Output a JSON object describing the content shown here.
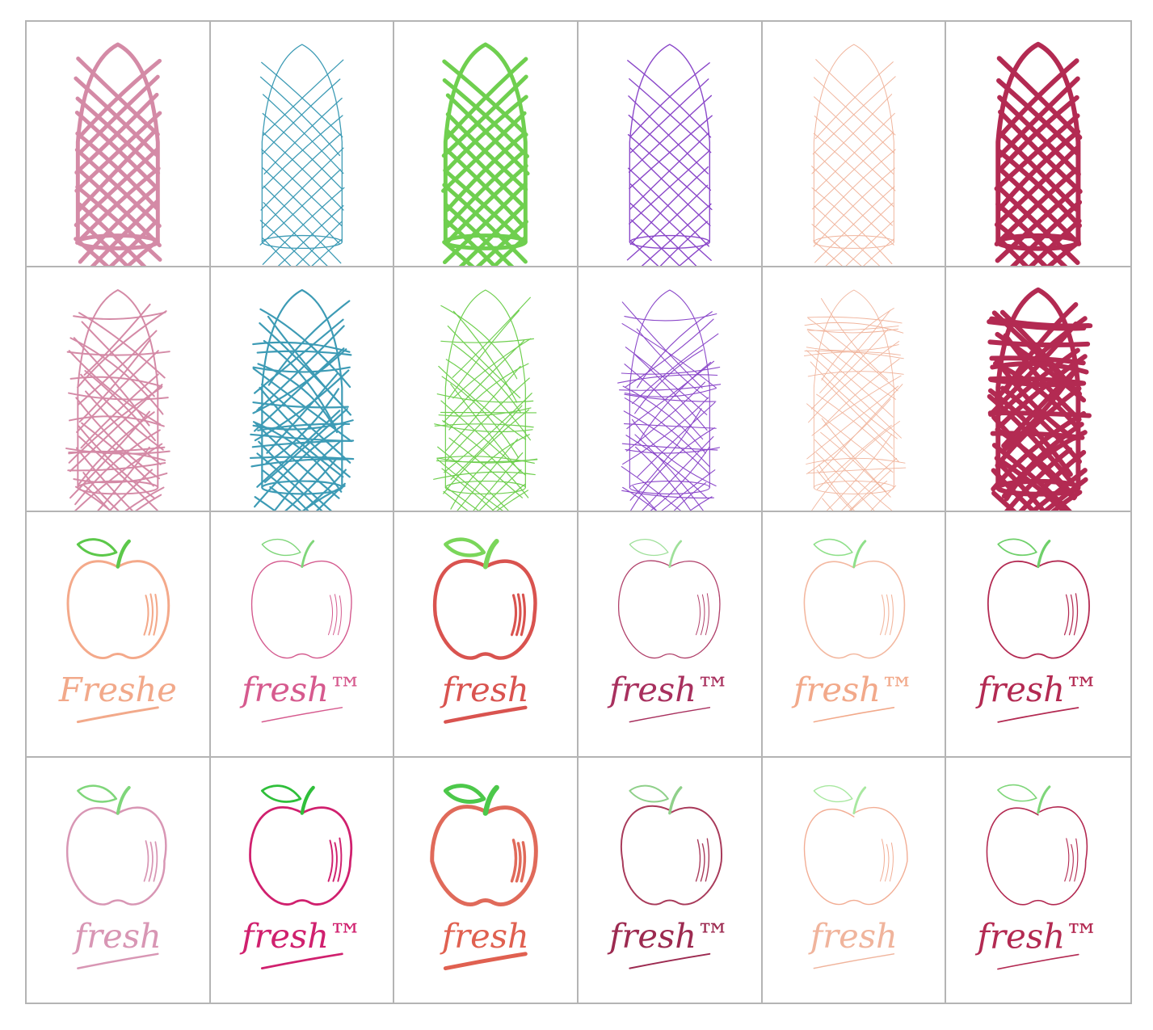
{
  "grid": {
    "rows": 4,
    "columns": 6,
    "border_color": "#b4b4b4"
  },
  "colors": [
    "#d48aa6",
    "#3d9bb5",
    "#6fcf4f",
    "#8a47c9",
    "#f0b49c",
    "#b32a52"
  ],
  "rows": [
    {
      "subject": "tower-sketch",
      "style": "clean"
    },
    {
      "subject": "tower-sketch",
      "style": "scribble"
    },
    {
      "subject": "apple-logo",
      "style": "clean"
    },
    {
      "subject": "apple-logo",
      "style": "loose"
    }
  ],
  "cells": [
    {
      "row": 0,
      "col": 0,
      "word": ""
    },
    {
      "row": 0,
      "col": 1,
      "word": ""
    },
    {
      "row": 0,
      "col": 2,
      "word": ""
    },
    {
      "row": 0,
      "col": 3,
      "word": ""
    },
    {
      "row": 0,
      "col": 4,
      "word": ""
    },
    {
      "row": 0,
      "col": 5,
      "word": ""
    },
    {
      "row": 1,
      "col": 0,
      "word": ""
    },
    {
      "row": 1,
      "col": 1,
      "word": ""
    },
    {
      "row": 1,
      "col": 2,
      "word": ""
    },
    {
      "row": 1,
      "col": 3,
      "word": ""
    },
    {
      "row": 1,
      "col": 4,
      "word": ""
    },
    {
      "row": 1,
      "col": 5,
      "word": ""
    },
    {
      "row": 2,
      "col": 0,
      "word": "Freshe",
      "color": "#f2a98a",
      "fruit": "#f4a98a",
      "leaf": "#5cc84a"
    },
    {
      "row": 2,
      "col": 1,
      "word": "fresh™",
      "color": "#d65a8e",
      "fruit": "#d45a8e",
      "leaf": "#7fd67a"
    },
    {
      "row": 2,
      "col": 2,
      "word": "fresh",
      "color": "#d9534f",
      "fruit": "#d9534f",
      "leaf": "#7ad65a"
    },
    {
      "row": 2,
      "col": 3,
      "word": "fresh™",
      "color": "#a8305e",
      "fruit": "#b0406a",
      "leaf": "#9fe09a"
    },
    {
      "row": 2,
      "col": 4,
      "word": "fresh™",
      "color": "#f2a98a",
      "fruit": "#f3b8a0",
      "leaf": "#8fe08a"
    },
    {
      "row": 2,
      "col": 5,
      "word": "fresh™",
      "color": "#b32a52",
      "fruit": "#b32a52",
      "leaf": "#6fd06a"
    },
    {
      "row": 3,
      "col": 0,
      "word": "fresh",
      "color": "#d896b4",
      "fruit": "#d896b4",
      "leaf": "#7fd67a"
    },
    {
      "row": 3,
      "col": 1,
      "word": "fresh™",
      "color": "#d0206e",
      "fruit": "#d0206e",
      "leaf": "#2fbf3a"
    },
    {
      "row": 3,
      "col": 2,
      "word": "fresh",
      "color": "#e06050",
      "fruit": "#e06a5a",
      "leaf": "#4cc84a"
    },
    {
      "row": 3,
      "col": 3,
      "word": "fresh™",
      "color": "#9c2a50",
      "fruit": "#a83a5a",
      "leaf": "#8fd08a"
    },
    {
      "row": 3,
      "col": 4,
      "word": "fresh",
      "color": "#f0b49c",
      "fruit": "#f2ad94",
      "leaf": "#a8e8a0"
    },
    {
      "row": 3,
      "col": 5,
      "word": "fresh™",
      "color": "#b32a52",
      "fruit": "#b32a52",
      "leaf": "#7fd67a"
    }
  ]
}
